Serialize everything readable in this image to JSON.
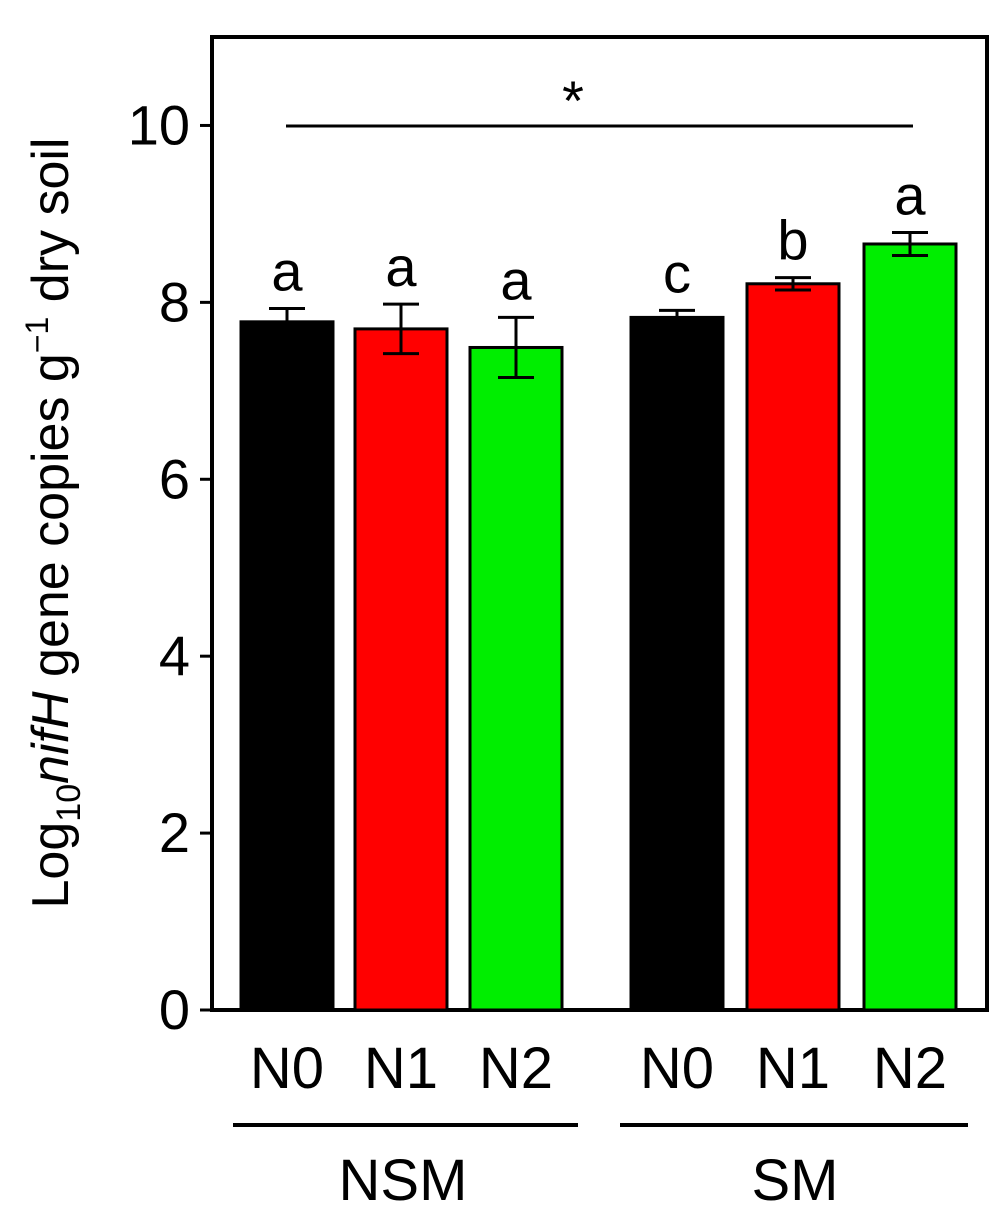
{
  "chart_data": {
    "type": "bar",
    "ylabel_parts": {
      "prefix": "Log",
      "subscript": "10",
      "italic": "nifH",
      "middle": " gene copies g",
      "superscript": "−1",
      "suffix": " dry soil"
    },
    "ylim": [
      0,
      11
    ],
    "yticks": [
      "0",
      "2",
      "4",
      "6",
      "8",
      "10"
    ],
    "categories": [
      "N0",
      "N1",
      "N2",
      "N0",
      "N1",
      "N2"
    ],
    "groups": [
      "NSM",
      "SM"
    ],
    "group_index": [
      0,
      0,
      0,
      1,
      1,
      1
    ],
    "values": [
      7.78,
      7.7,
      7.49,
      7.83,
      8.21,
      8.66
    ],
    "errors": [
      0.15,
      0.28,
      0.34,
      0.08,
      0.07,
      0.13
    ],
    "letters": [
      "a",
      "a",
      "a",
      "c",
      "b",
      "a"
    ],
    "colors": [
      "#000000",
      "#ff0000",
      "#00ee00",
      "#000000",
      "#ff0000",
      "#00ee00"
    ],
    "significance_mark": "*",
    "grid": false,
    "legend": "none"
  }
}
